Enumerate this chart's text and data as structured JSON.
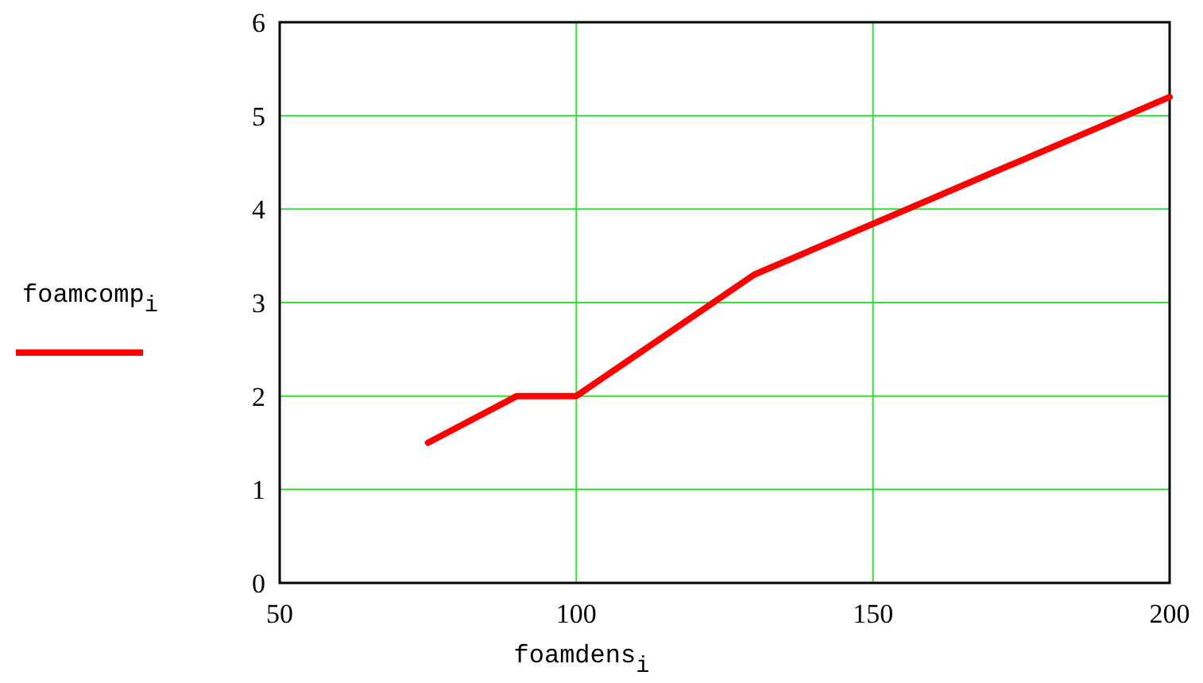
{
  "chart_data": {
    "type": "line",
    "xlabel": "foamdens$_{i}$",
    "x": [
      75,
      90,
      100,
      130,
      200
    ],
    "series": [
      {
        "name": "foamcomp$_{i}$",
        "color": "#ff0000",
        "values": [
          1.5,
          2,
          2,
          3.3,
          5.2
        ]
      }
    ],
    "xlim": [
      50,
      200
    ],
    "xticks": [
      50,
      100,
      150,
      200
    ],
    "ylim": [
      0,
      6
    ],
    "yticks": [
      0,
      1,
      2,
      3,
      4,
      5,
      6
    ],
    "grid": true,
    "legend": "left",
    "line_style": "solid",
    "marker": "none"
  }
}
